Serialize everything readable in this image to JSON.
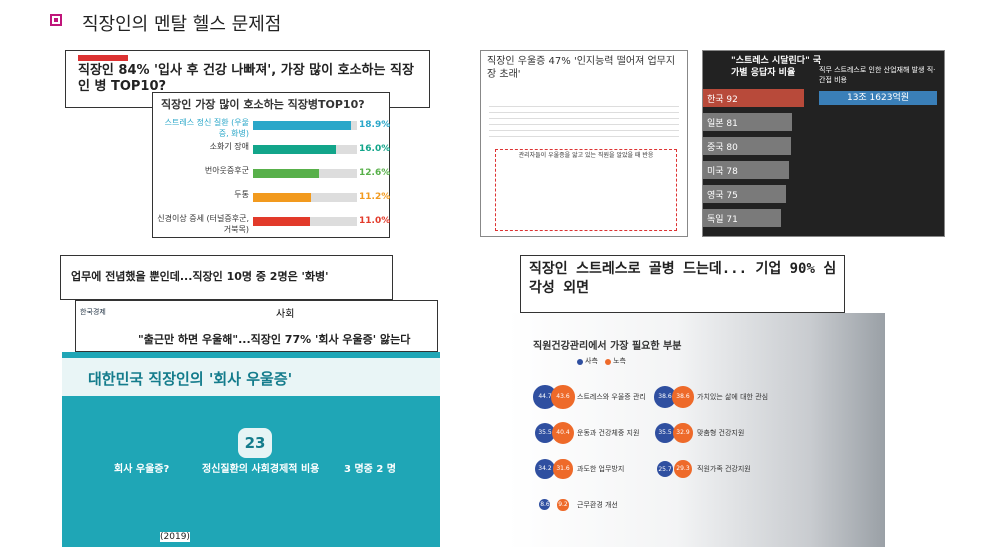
{
  "title": "직장인의 멘탈 헬스 문제점",
  "clip1": {
    "headline": "직장인 84% '입사 후 건강 나빠져', 가장 많이 호소하는 직장인 병 TOP10?",
    "chart": {
      "title": "직장인 가장 많이 호소하는 직장병TOP10?",
      "categories": [
        "스트레스 정신 질환 (우울증, 화병)",
        "소화기 장애",
        "번아웃증후군",
        "두통",
        "신경이상 증세 (터널증후군, 거북목)"
      ],
      "values": [
        18.9,
        16.0,
        12.6,
        11.2,
        11.0
      ],
      "value_labels": [
        "18.9%",
        "16.0%",
        "12.6%",
        "11.2%",
        "11.0%"
      ],
      "xlim": [
        0,
        20
      ],
      "colors": [
        "#2aa7c9",
        "#12a58a",
        "#58b04a",
        "#f29a1e",
        "#e23a2a"
      ]
    }
  },
  "clip2": {
    "headline": "직장인 우울증 47% '인지능력 떨어져 업무지장 초래'",
    "chart_title": "관리자들이 우울증을 앓고 있는 직원을 알았을 때 반응"
  },
  "clip3": {
    "headline": "\"스트레스 시달린다\" 국가별 응답자 비율",
    "side_title": "직무 스트레스로 인한 산업재해 발생 직·간접 비용",
    "total": "13조 1623억원",
    "chart": {
      "categories": [
        "한국",
        "일본",
        "중국",
        "미국",
        "영국",
        "독일"
      ],
      "values": [
        92,
        81,
        80,
        78,
        75,
        71
      ],
      "xlim": [
        0,
        100
      ],
      "colors": [
        "#b84a3a",
        "#7a7a7a",
        "#7a7a7a",
        "#7a7a7a",
        "#7a7a7a",
        "#7a7a7a"
      ]
    }
  },
  "clip4": {
    "headline": "업무에 전념했을 뿐인데...직장인 10명 중 2명은 '화병'"
  },
  "clip5": {
    "source": "한국경제",
    "section": "사회",
    "headline": "\"출근만 하면 우울해\"...직장인 77% '회사 우울증' 앓는다"
  },
  "infographic": {
    "title": "대한민국 직장인의 '회사 우울증'",
    "items": [
      "회사 우울증?",
      "정신질환의 사회경제적 비용",
      "3 명중 2 명"
    ],
    "cost": "23",
    "year": "(2019)"
  },
  "clip6": {
    "headline": "직장인 스트레스로 골병 드는데... 기업 90% 심각성 외면",
    "chart_title": "직원건강관리에서 가장 필요한 부분",
    "legend": [
      "사측",
      "노측"
    ],
    "items": [
      {
        "label": "스트레스와 우울증 관리",
        "values": [
          44.7,
          43.6
        ]
      },
      {
        "label": "가치있는 삶에 대한 관심",
        "values": [
          38.6,
          38.6
        ]
      },
      {
        "label": "운동과 건강체중 지원",
        "values": [
          35.5,
          40.4
        ]
      },
      {
        "label": "맞춤형 건강지원",
        "values": [
          35.5,
          32.9
        ]
      },
      {
        "label": "과도한 업무방지",
        "values": [
          34.2,
          31.6
        ]
      },
      {
        "label": "직원가족 건강지원",
        "values": [
          25.7,
          29.3
        ]
      },
      {
        "label": "근무환경 개선",
        "values": [
          8.6,
          9.2
        ]
      }
    ],
    "colors": [
      "#2f4fa0",
      "#ee6a2a"
    ]
  }
}
